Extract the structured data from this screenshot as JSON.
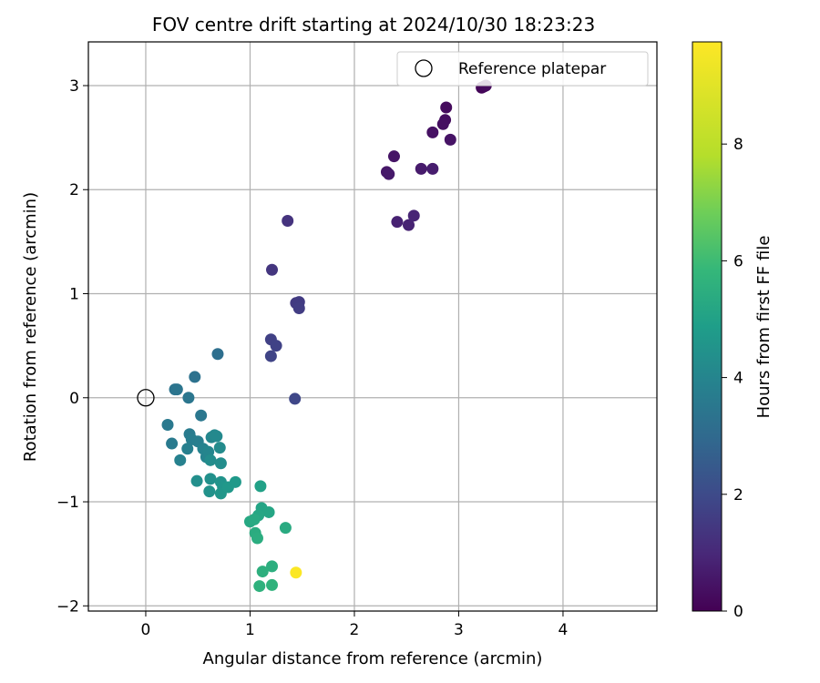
{
  "chart_data": {
    "type": "scatter",
    "title": "FOV centre drift starting at 2024/10/30 18:23:23",
    "xlabel": "Angular distance from reference (arcmin)",
    "ylabel": "Rotation from reference (arcmin)",
    "xlim": [
      -0.55,
      4.9
    ],
    "ylim": [
      -2.05,
      3.42
    ],
    "x_ticks": [
      0,
      1,
      2,
      3,
      4
    ],
    "y_ticks": [
      -2,
      -1,
      0,
      1,
      2,
      3
    ],
    "x_tick_labels": [
      "0",
      "1",
      "2",
      "3",
      "4"
    ],
    "y_tick_labels": [
      "−2",
      "−1",
      "0",
      "1",
      "2",
      "3"
    ],
    "grid": true,
    "legend": {
      "position": "top-right",
      "label": "Reference platepar"
    },
    "reference_point": {
      "x": 0,
      "y": 0
    },
    "colorbar": {
      "label": "Hours from first FF file",
      "range": [
        0,
        9.75
      ],
      "ticks": [
        0,
        2,
        4,
        6,
        8
      ],
      "tick_labels": [
        "0",
        "2",
        "4",
        "6",
        "8"
      ],
      "colormap": "viridis"
    },
    "points": [
      {
        "x": 3.22,
        "y": 2.98,
        "hours": 0.1
      },
      {
        "x": 3.24,
        "y": 2.99,
        "hours": 0.15
      },
      {
        "x": 3.26,
        "y": 3.0,
        "hours": 0.2
      },
      {
        "x": 2.88,
        "y": 2.79,
        "hours": 0.25
      },
      {
        "x": 2.87,
        "y": 2.67,
        "hours": 0.3
      },
      {
        "x": 2.85,
        "y": 2.63,
        "hours": 0.35
      },
      {
        "x": 2.75,
        "y": 2.55,
        "hours": 0.4
      },
      {
        "x": 2.92,
        "y": 2.48,
        "hours": 0.45
      },
      {
        "x": 2.38,
        "y": 2.32,
        "hours": 0.5
      },
      {
        "x": 2.31,
        "y": 2.17,
        "hours": 0.55
      },
      {
        "x": 2.33,
        "y": 2.15,
        "hours": 0.6
      },
      {
        "x": 2.64,
        "y": 2.2,
        "hours": 0.65
      },
      {
        "x": 2.75,
        "y": 2.2,
        "hours": 0.7
      },
      {
        "x": 2.41,
        "y": 1.69,
        "hours": 0.8
      },
      {
        "x": 2.52,
        "y": 1.66,
        "hours": 0.85
      },
      {
        "x": 2.57,
        "y": 1.75,
        "hours": 0.9
      },
      {
        "x": 1.36,
        "y": 1.7,
        "hours": 1.3
      },
      {
        "x": 1.21,
        "y": 1.23,
        "hours": 1.4
      },
      {
        "x": 1.44,
        "y": 0.91,
        "hours": 1.5
      },
      {
        "x": 1.47,
        "y": 0.92,
        "hours": 1.55
      },
      {
        "x": 1.47,
        "y": 0.86,
        "hours": 1.6
      },
      {
        "x": 1.2,
        "y": 0.56,
        "hours": 1.7
      },
      {
        "x": 1.25,
        "y": 0.5,
        "hours": 1.75
      },
      {
        "x": 1.2,
        "y": 0.4,
        "hours": 1.8
      },
      {
        "x": 1.43,
        "y": -0.01,
        "hours": 1.9
      },
      {
        "x": 0.69,
        "y": 0.42,
        "hours": 3.2
      },
      {
        "x": 0.47,
        "y": 0.2,
        "hours": 3.3
      },
      {
        "x": 0.28,
        "y": 0.08,
        "hours": 3.35
      },
      {
        "x": 0.3,
        "y": 0.08,
        "hours": 3.4
      },
      {
        "x": 0.41,
        "y": 0.0,
        "hours": 3.45
      },
      {
        "x": 0.53,
        "y": -0.17,
        "hours": 3.5
      },
      {
        "x": 0.21,
        "y": -0.26,
        "hours": 3.55
      },
      {
        "x": 0.25,
        "y": -0.44,
        "hours": 3.6
      },
      {
        "x": 0.42,
        "y": -0.35,
        "hours": 3.65
      },
      {
        "x": 0.44,
        "y": -0.4,
        "hours": 3.7
      },
      {
        "x": 0.5,
        "y": -0.42,
        "hours": 3.75
      },
      {
        "x": 0.4,
        "y": -0.49,
        "hours": 3.8
      },
      {
        "x": 0.33,
        "y": -0.6,
        "hours": 3.85
      },
      {
        "x": 0.55,
        "y": -0.49,
        "hours": 3.9
      },
      {
        "x": 0.58,
        "y": -0.57,
        "hours": 3.95
      },
      {
        "x": 0.6,
        "y": -0.52,
        "hours": 4.0
      },
      {
        "x": 0.63,
        "y": -0.38,
        "hours": 4.05
      },
      {
        "x": 0.66,
        "y": -0.36,
        "hours": 4.1
      },
      {
        "x": 0.68,
        "y": -0.37,
        "hours": 4.15
      },
      {
        "x": 0.71,
        "y": -0.48,
        "hours": 4.2
      },
      {
        "x": 0.62,
        "y": -0.6,
        "hours": 4.25
      },
      {
        "x": 0.72,
        "y": -0.63,
        "hours": 4.3
      },
      {
        "x": 0.49,
        "y": -0.8,
        "hours": 4.35
      },
      {
        "x": 0.62,
        "y": -0.78,
        "hours": 4.4
      },
      {
        "x": 0.61,
        "y": -0.9,
        "hours": 4.45
      },
      {
        "x": 0.72,
        "y": -0.81,
        "hours": 4.5
      },
      {
        "x": 0.74,
        "y": -0.86,
        "hours": 4.55
      },
      {
        "x": 0.72,
        "y": -0.92,
        "hours": 4.6
      },
      {
        "x": 0.79,
        "y": -0.86,
        "hours": 4.65
      },
      {
        "x": 0.86,
        "y": -0.81,
        "hours": 4.7
      },
      {
        "x": 1.1,
        "y": -0.85,
        "hours": 5.0
      },
      {
        "x": 1.11,
        "y": -1.06,
        "hours": 5.1
      },
      {
        "x": 1.18,
        "y": -1.1,
        "hours": 5.15
      },
      {
        "x": 1.08,
        "y": -1.13,
        "hours": 5.2
      },
      {
        "x": 1.0,
        "y": -1.19,
        "hours": 5.25
      },
      {
        "x": 1.04,
        "y": -1.17,
        "hours": 5.3
      },
      {
        "x": 1.34,
        "y": -1.25,
        "hours": 5.35
      },
      {
        "x": 1.05,
        "y": -1.3,
        "hours": 5.4
      },
      {
        "x": 1.07,
        "y": -1.35,
        "hours": 5.45
      },
      {
        "x": 1.21,
        "y": -1.62,
        "hours": 5.5
      },
      {
        "x": 1.12,
        "y": -1.67,
        "hours": 5.55
      },
      {
        "x": 1.09,
        "y": -1.81,
        "hours": 5.6
      },
      {
        "x": 1.21,
        "y": -1.8,
        "hours": 5.65
      },
      {
        "x": 1.44,
        "y": -1.68,
        "hours": 9.7
      }
    ]
  }
}
